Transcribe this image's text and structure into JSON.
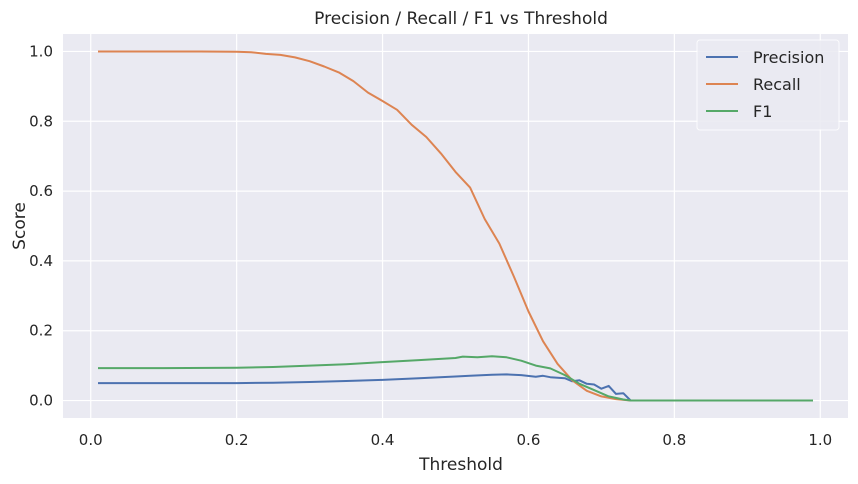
{
  "chart_data": {
    "type": "line",
    "title": "Precision / Recall / F1 vs Threshold",
    "xlabel": "Threshold",
    "ylabel": "Score",
    "xlim": [
      -0.038,
      1.038
    ],
    "ylim": [
      -0.05,
      1.05
    ],
    "xticks": [
      0.0,
      0.2,
      0.4,
      0.6,
      0.8,
      1.0
    ],
    "xtick_labels": [
      "0.0",
      "0.2",
      "0.4",
      "0.6",
      "0.8",
      "1.0"
    ],
    "yticks": [
      0.0,
      0.2,
      0.4,
      0.6,
      0.8,
      1.0
    ],
    "ytick_labels": [
      "0.0",
      "0.2",
      "0.4",
      "0.6",
      "0.8",
      "1.0"
    ],
    "grid": true,
    "background": "#eaeaf2",
    "legend_position": "top-right",
    "series": [
      {
        "name": "Precision",
        "color": "#4c72b0",
        "points": [
          [
            0.01,
            0.05
          ],
          [
            0.1,
            0.05
          ],
          [
            0.2,
            0.05
          ],
          [
            0.25,
            0.051
          ],
          [
            0.3,
            0.053
          ],
          [
            0.35,
            0.056
          ],
          [
            0.4,
            0.059
          ],
          [
            0.45,
            0.064
          ],
          [
            0.5,
            0.069
          ],
          [
            0.52,
            0.071
          ],
          [
            0.55,
            0.074
          ],
          [
            0.57,
            0.075
          ],
          [
            0.59,
            0.073
          ],
          [
            0.61,
            0.068
          ],
          [
            0.62,
            0.071
          ],
          [
            0.63,
            0.067
          ],
          [
            0.65,
            0.064
          ],
          [
            0.66,
            0.055
          ],
          [
            0.67,
            0.058
          ],
          [
            0.68,
            0.048
          ],
          [
            0.69,
            0.046
          ],
          [
            0.7,
            0.034
          ],
          [
            0.71,
            0.042
          ],
          [
            0.72,
            0.019
          ],
          [
            0.73,
            0.021
          ],
          [
            0.74,
            0.0
          ],
          [
            0.99,
            0.0
          ]
        ]
      },
      {
        "name": "Recall",
        "color": "#dd8452",
        "points": [
          [
            0.01,
            1.0
          ],
          [
            0.1,
            1.0
          ],
          [
            0.15,
            1.0
          ],
          [
            0.2,
            0.999
          ],
          [
            0.22,
            0.998
          ],
          [
            0.24,
            0.993
          ],
          [
            0.26,
            0.99
          ],
          [
            0.28,
            0.983
          ],
          [
            0.3,
            0.972
          ],
          [
            0.32,
            0.957
          ],
          [
            0.34,
            0.94
          ],
          [
            0.36,
            0.915
          ],
          [
            0.38,
            0.882
          ],
          [
            0.4,
            0.858
          ],
          [
            0.42,
            0.833
          ],
          [
            0.44,
            0.79
          ],
          [
            0.46,
            0.755
          ],
          [
            0.48,
            0.708
          ],
          [
            0.5,
            0.655
          ],
          [
            0.52,
            0.61
          ],
          [
            0.54,
            0.52
          ],
          [
            0.56,
            0.45
          ],
          [
            0.58,
            0.355
          ],
          [
            0.6,
            0.255
          ],
          [
            0.62,
            0.17
          ],
          [
            0.64,
            0.105
          ],
          [
            0.66,
            0.058
          ],
          [
            0.68,
            0.028
          ],
          [
            0.7,
            0.012
          ],
          [
            0.72,
            0.004
          ],
          [
            0.74,
            0.0
          ],
          [
            0.99,
            0.0
          ]
        ]
      },
      {
        "name": "F1",
        "color": "#55a868",
        "points": [
          [
            0.01,
            0.093
          ],
          [
            0.1,
            0.093
          ],
          [
            0.2,
            0.094
          ],
          [
            0.25,
            0.096
          ],
          [
            0.3,
            0.1
          ],
          [
            0.35,
            0.104
          ],
          [
            0.4,
            0.11
          ],
          [
            0.45,
            0.116
          ],
          [
            0.5,
            0.122
          ],
          [
            0.51,
            0.126
          ],
          [
            0.53,
            0.124
          ],
          [
            0.55,
            0.127
          ],
          [
            0.57,
            0.124
          ],
          [
            0.59,
            0.114
          ],
          [
            0.61,
            0.1
          ],
          [
            0.63,
            0.092
          ],
          [
            0.65,
            0.073
          ],
          [
            0.67,
            0.048
          ],
          [
            0.69,
            0.03
          ],
          [
            0.71,
            0.012
          ],
          [
            0.73,
            0.003
          ],
          [
            0.74,
            0.0
          ],
          [
            0.99,
            0.0
          ]
        ]
      }
    ]
  }
}
